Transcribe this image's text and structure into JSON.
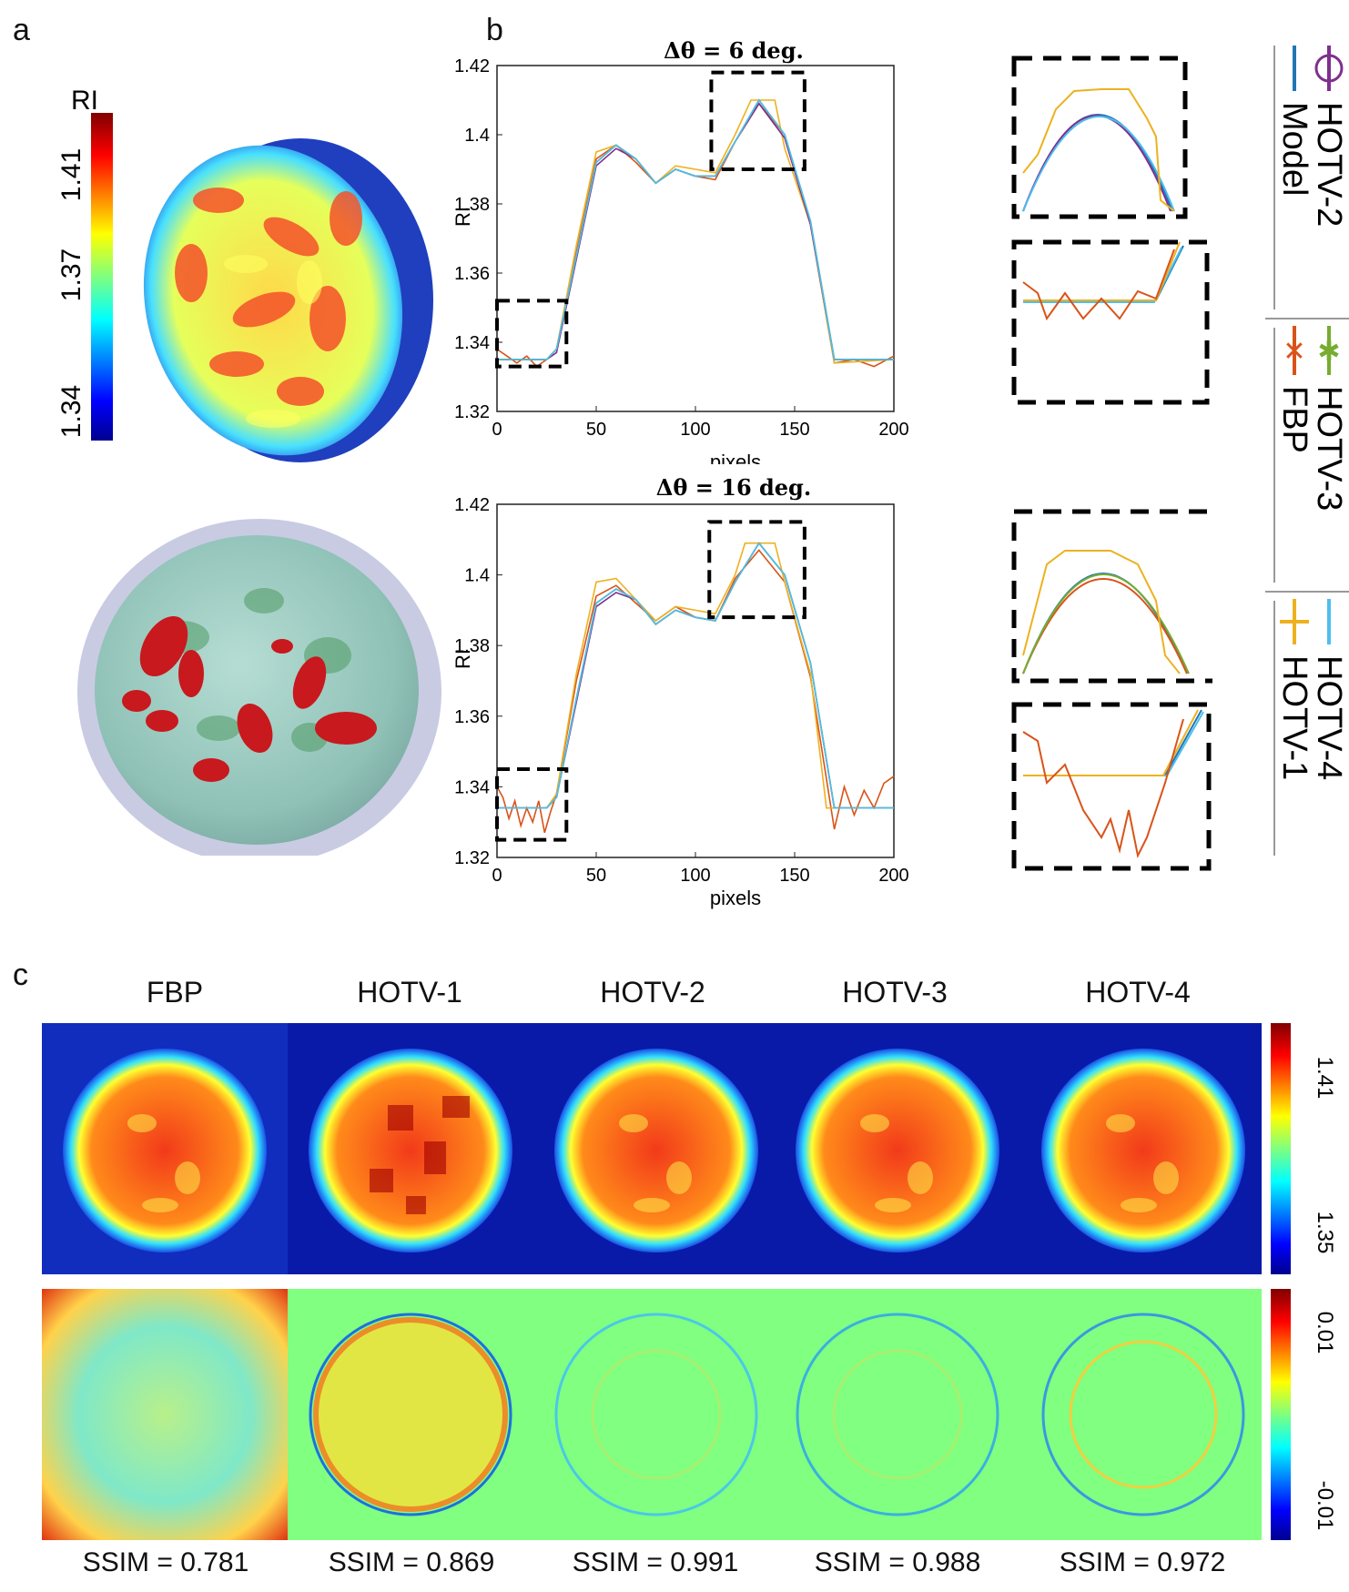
{
  "panels": {
    "a": "a",
    "b": "b",
    "c": "c"
  },
  "panel_a": {
    "colorbar_title": "RI",
    "colorbar_ticks": [
      "1.41",
      "1.37",
      "1.34"
    ],
    "colors": {
      "cell_fill": "#1f3fbf",
      "iso_red": "#c8191e",
      "iso_green": "#4f9a64",
      "membrane": "#c9cbe3"
    }
  },
  "panel_b": {
    "inset_legend": [
      "HOTV-2",
      "Model",
      "HOTV-3",
      "FBP",
      "HOTV-4",
      "HOTV-1"
    ],
    "series_styles": {
      "Model": "#1f77b4",
      "FBP": "#d95319",
      "HOTV-1": "#edb120",
      "HOTV-2": "#7e2f8e",
      "HOTV-3": "#77ac30",
      "HOTV-4": "#4dbeee"
    }
  },
  "panel_c": {
    "titles": [
      "FBP",
      "HOTV-1",
      "HOTV-2",
      "HOTV-3",
      "HOTV-4"
    ],
    "ssim": [
      "SSIM = 0.781",
      "SSIM = 0.869",
      "SSIM = 0.991",
      "SSIM = 0.988",
      "SSIM = 0.972"
    ],
    "cb1_ticks": [
      "1.41",
      "1.35"
    ],
    "cb2_ticks": [
      "0.01",
      "-0.01"
    ]
  },
  "chart_data": [
    {
      "type": "line",
      "title": "Δθ = 6 deg.",
      "xlabel": "pixels",
      "ylabel": "RI",
      "xlim": [
        0,
        200
      ],
      "ylim": [
        1.32,
        1.42
      ],
      "xticks": [
        "0",
        "50",
        "100",
        "150",
        "200"
      ],
      "yticks": [
        "1.42",
        "1.4",
        "1.38",
        "1.36",
        "1.34",
        "1.32"
      ],
      "series": [
        {
          "name": "Model",
          "x": [
            0,
            25,
            30,
            40,
            50,
            60,
            70,
            80,
            90,
            100,
            110,
            120,
            132,
            145,
            158,
            170,
            200
          ],
          "values": [
            1.335,
            1.335,
            1.338,
            1.365,
            1.392,
            1.397,
            1.393,
            1.386,
            1.39,
            1.388,
            1.388,
            1.398,
            1.41,
            1.4,
            1.375,
            1.335,
            1.335
          ]
        },
        {
          "name": "FBP",
          "x": [
            0,
            5,
            10,
            15,
            20,
            25,
            30,
            40,
            50,
            60,
            70,
            80,
            90,
            100,
            110,
            120,
            132,
            145,
            158,
            170,
            180,
            190,
            200
          ],
          "values": [
            1.338,
            1.336,
            1.334,
            1.336,
            1.333,
            1.335,
            1.338,
            1.366,
            1.393,
            1.397,
            1.392,
            1.386,
            1.39,
            1.388,
            1.387,
            1.398,
            1.409,
            1.4,
            1.374,
            1.334,
            1.335,
            1.333,
            1.336
          ]
        },
        {
          "name": "HOTV-1",
          "x": [
            0,
            25,
            30,
            40,
            50,
            60,
            70,
            80,
            90,
            100,
            110,
            120,
            128,
            140,
            145,
            158,
            170,
            200
          ],
          "values": [
            1.335,
            1.335,
            1.338,
            1.368,
            1.395,
            1.397,
            1.393,
            1.386,
            1.391,
            1.39,
            1.389,
            1.4,
            1.41,
            1.41,
            1.396,
            1.374,
            1.334,
            1.335
          ]
        },
        {
          "name": "HOTV-2",
          "x": [
            0,
            25,
            30,
            40,
            50,
            60,
            70,
            80,
            90,
            100,
            110,
            120,
            132,
            145,
            158,
            170,
            200
          ],
          "values": [
            1.335,
            1.335,
            1.337,
            1.364,
            1.391,
            1.396,
            1.393,
            1.386,
            1.39,
            1.388,
            1.388,
            1.398,
            1.409,
            1.399,
            1.374,
            1.335,
            1.335
          ]
        },
        {
          "name": "HOTV-3",
          "x": [
            0,
            25,
            30,
            40,
            50,
            60,
            70,
            80,
            90,
            100,
            110,
            120,
            132,
            145,
            158,
            170,
            200
          ],
          "values": [
            1.335,
            1.335,
            1.338,
            1.365,
            1.392,
            1.397,
            1.393,
            1.386,
            1.39,
            1.388,
            1.388,
            1.398,
            1.41,
            1.4,
            1.375,
            1.335,
            1.335
          ]
        },
        {
          "name": "HOTV-4",
          "x": [
            0,
            25,
            30,
            40,
            50,
            60,
            70,
            80,
            90,
            100,
            110,
            120,
            132,
            145,
            158,
            170,
            200
          ],
          "values": [
            1.335,
            1.335,
            1.338,
            1.365,
            1.392,
            1.397,
            1.393,
            1.386,
            1.39,
            1.388,
            1.388,
            1.398,
            1.41,
            1.4,
            1.375,
            1.335,
            1.335
          ]
        }
      ]
    },
    {
      "type": "line",
      "title": "Δθ = 16 deg.",
      "xlabel": "pixels",
      "ylabel": "RI",
      "xlim": [
        0,
        200
      ],
      "ylim": [
        1.32,
        1.42
      ],
      "xticks": [
        "0",
        "50",
        "100",
        "150",
        "200"
      ],
      "yticks": [
        "1.42",
        "1.4",
        "1.38",
        "1.36",
        "1.34",
        "1.32"
      ],
      "series": [
        {
          "name": "Model",
          "x": [
            0,
            25,
            30,
            40,
            50,
            60,
            70,
            80,
            90,
            100,
            110,
            120,
            132,
            145,
            158,
            170,
            200
          ],
          "values": [
            1.334,
            1.334,
            1.337,
            1.365,
            1.392,
            1.396,
            1.393,
            1.386,
            1.39,
            1.388,
            1.387,
            1.398,
            1.409,
            1.4,
            1.375,
            1.334,
            1.334
          ]
        },
        {
          "name": "FBP",
          "x": [
            0,
            3,
            6,
            9,
            12,
            15,
            18,
            21,
            24,
            27,
            30,
            40,
            50,
            60,
            70,
            80,
            90,
            100,
            110,
            120,
            132,
            145,
            158,
            170,
            175,
            180,
            185,
            190,
            195,
            200
          ],
          "values": [
            1.34,
            1.337,
            1.331,
            1.336,
            1.329,
            1.334,
            1.33,
            1.336,
            1.327,
            1.333,
            1.338,
            1.37,
            1.394,
            1.397,
            1.392,
            1.387,
            1.391,
            1.388,
            1.387,
            1.399,
            1.407,
            1.398,
            1.371,
            1.328,
            1.34,
            1.332,
            1.339,
            1.334,
            1.341,
            1.343
          ]
        },
        {
          "name": "HOTV-1",
          "x": [
            0,
            25,
            30,
            40,
            50,
            60,
            70,
            80,
            90,
            100,
            110,
            120,
            125,
            140,
            145,
            158,
            166,
            200
          ],
          "values": [
            1.334,
            1.334,
            1.338,
            1.372,
            1.398,
            1.399,
            1.393,
            1.387,
            1.391,
            1.39,
            1.389,
            1.4,
            1.409,
            1.409,
            1.398,
            1.372,
            1.334,
            1.334
          ]
        },
        {
          "name": "HOTV-2",
          "x": [
            0,
            25,
            30,
            40,
            50,
            60,
            70,
            80,
            90,
            100,
            110,
            120,
            132,
            145,
            158,
            170,
            200
          ],
          "values": [
            1.334,
            1.334,
            1.337,
            1.364,
            1.391,
            1.395,
            1.393,
            1.386,
            1.39,
            1.388,
            1.387,
            1.398,
            1.409,
            1.4,
            1.375,
            1.334,
            1.334
          ]
        },
        {
          "name": "HOTV-3",
          "x": [
            0,
            25,
            30,
            40,
            50,
            60,
            70,
            80,
            90,
            100,
            110,
            120,
            132,
            145,
            158,
            170,
            200
          ],
          "values": [
            1.334,
            1.334,
            1.337,
            1.365,
            1.392,
            1.396,
            1.393,
            1.386,
            1.39,
            1.388,
            1.387,
            1.398,
            1.409,
            1.4,
            1.375,
            1.334,
            1.334
          ]
        },
        {
          "name": "HOTV-4",
          "x": [
            0,
            25,
            30,
            40,
            50,
            60,
            70,
            80,
            90,
            100,
            110,
            120,
            132,
            145,
            158,
            170,
            200
          ],
          "values": [
            1.334,
            1.334,
            1.337,
            1.365,
            1.392,
            1.396,
            1.393,
            1.386,
            1.39,
            1.388,
            1.387,
            1.398,
            1.409,
            1.4,
            1.375,
            1.334,
            1.334
          ]
        }
      ]
    }
  ]
}
